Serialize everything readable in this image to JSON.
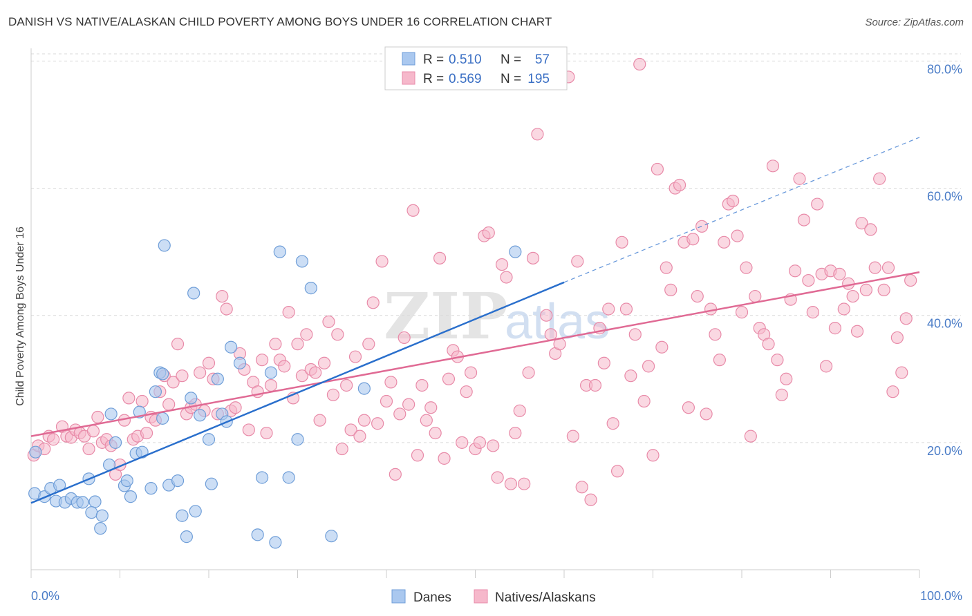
{
  "header": {
    "title": "DANISH VS NATIVE/ALASKAN CHILD POVERTY AMONG BOYS UNDER 16 CORRELATION CHART",
    "source": "Source: ZipAtlas.com"
  },
  "watermark": "ZIPatlas",
  "legend_top": [
    {
      "r_label": "R =",
      "r_value": "0.510",
      "n_label": "N =",
      "n_value": "57"
    },
    {
      "r_label": "R =",
      "r_value": "0.569",
      "n_label": "N =",
      "n_value": "195"
    }
  ],
  "legend_bottom": [
    "Danes",
    "Natives/Alaskans"
  ],
  "colors": {
    "danes_fill": "#aac8ef",
    "danes_stroke": "#6f9ed8",
    "danes_line": "#2a6fcc",
    "natives_fill": "#f6b8cb",
    "natives_stroke": "#e88aa8",
    "natives_line": "#e06a94",
    "grid": "#d9d9d9",
    "axis_text": "#4a7cc7"
  },
  "chart_data": {
    "type": "scatter",
    "xlabel": "",
    "ylabel": "Child Poverty Among Boys Under 16",
    "xlim": [
      0,
      100
    ],
    "ylim": [
      0,
      82
    ],
    "x_tick_labels": [
      "0.0%",
      "100.0%"
    ],
    "y_ticks": [
      20,
      40,
      60,
      80
    ],
    "y_tick_labels": [
      "20.0%",
      "40.0%",
      "60.0%",
      "80.0%"
    ],
    "grid": true,
    "legend_position": "top-center",
    "series": [
      {
        "name": "Danes",
        "R": 0.51,
        "N": 57,
        "trend": {
          "x0": 0,
          "y0": 10.5,
          "x1": 60,
          "y1": 45.2,
          "dashed_to_x": 100,
          "dashed_to_y": 68
        },
        "points": [
          [
            0.5,
            18.5
          ],
          [
            0.4,
            12.0
          ],
          [
            1.5,
            11.5
          ],
          [
            2.2,
            12.8
          ],
          [
            3.2,
            13.3
          ],
          [
            2.8,
            10.8
          ],
          [
            3.8,
            10.6
          ],
          [
            4.5,
            11.2
          ],
          [
            5.2,
            10.6
          ],
          [
            5.8,
            10.6
          ],
          [
            6.5,
            14.3
          ],
          [
            7.2,
            10.7
          ],
          [
            6.8,
            9.0
          ],
          [
            8.0,
            8.5
          ],
          [
            7.8,
            6.5
          ],
          [
            8.8,
            16.5
          ],
          [
            9.5,
            20.0
          ],
          [
            10.5,
            13.2
          ],
          [
            10.8,
            14.0
          ],
          [
            11.2,
            11.5
          ],
          [
            11.8,
            18.3
          ],
          [
            12.5,
            18.5
          ],
          [
            13.5,
            12.8
          ],
          [
            12.2,
            24.8
          ],
          [
            14.0,
            28.0
          ],
          [
            14.5,
            31.0
          ],
          [
            14.8,
            23.8
          ],
          [
            15.5,
            13.3
          ],
          [
            16.5,
            14.0
          ],
          [
            17.0,
            8.5
          ],
          [
            17.5,
            5.2
          ],
          [
            18.5,
            9.2
          ],
          [
            19.0,
            24.3
          ],
          [
            20.0,
            20.5
          ],
          [
            20.3,
            13.5
          ],
          [
            21.5,
            24.5
          ],
          [
            22.0,
            23.3
          ],
          [
            15.0,
            51.0
          ],
          [
            18.3,
            43.5
          ],
          [
            22.5,
            35.0
          ],
          [
            14.8,
            30.8
          ],
          [
            23.5,
            32.5
          ],
          [
            25.5,
            5.5
          ],
          [
            26.0,
            14.5
          ],
          [
            27.0,
            31.0
          ],
          [
            27.5,
            4.3
          ],
          [
            28.0,
            50.0
          ],
          [
            29.0,
            14.5
          ],
          [
            30.0,
            20.5
          ],
          [
            30.5,
            48.5
          ],
          [
            31.5,
            44.3
          ],
          [
            33.8,
            5.3
          ],
          [
            37.5,
            28.5
          ],
          [
            54.5,
            50.0
          ],
          [
            18.0,
            27.0
          ],
          [
            21.0,
            30.0
          ],
          [
            9.0,
            24.5
          ]
        ]
      },
      {
        "name": "Natives/Alaskans",
        "R": 0.569,
        "N": 195,
        "trend": {
          "x0": 0,
          "y0": 21.0,
          "x1": 100,
          "y1": 46.8
        },
        "points": [
          [
            0.3,
            18.0
          ],
          [
            0.8,
            19.5
          ],
          [
            1.5,
            19.0
          ],
          [
            2.0,
            21.0
          ],
          [
            2.5,
            20.5
          ],
          [
            3.5,
            22.5
          ],
          [
            4.0,
            21.0
          ],
          [
            4.5,
            20.8
          ],
          [
            5.0,
            22.0
          ],
          [
            5.5,
            21.5
          ],
          [
            6.0,
            21.0
          ],
          [
            6.5,
            19.0
          ],
          [
            7.0,
            21.8
          ],
          [
            7.5,
            24.0
          ],
          [
            8.0,
            20.0
          ],
          [
            8.5,
            20.5
          ],
          [
            9.0,
            19.5
          ],
          [
            9.5,
            15.0
          ],
          [
            10.0,
            16.5
          ],
          [
            10.5,
            23.5
          ],
          [
            11.0,
            27.0
          ],
          [
            11.5,
            20.5
          ],
          [
            12.0,
            21.0
          ],
          [
            12.5,
            26.5
          ],
          [
            13.0,
            21.5
          ],
          [
            13.5,
            24.0
          ],
          [
            14.0,
            23.5
          ],
          [
            14.5,
            28.0
          ],
          [
            15.0,
            30.5
          ],
          [
            15.5,
            26.0
          ],
          [
            16.0,
            29.5
          ],
          [
            16.5,
            35.5
          ],
          [
            17.0,
            30.5
          ],
          [
            17.5,
            24.5
          ],
          [
            18.0,
            25.5
          ],
          [
            18.5,
            26.0
          ],
          [
            19.0,
            31.0
          ],
          [
            19.5,
            25.0
          ],
          [
            20.0,
            32.5
          ],
          [
            20.5,
            30.0
          ],
          [
            21.0,
            24.5
          ],
          [
            21.5,
            43.0
          ],
          [
            22.0,
            41.0
          ],
          [
            22.5,
            25.0
          ],
          [
            23.0,
            25.5
          ],
          [
            23.5,
            34.0
          ],
          [
            24.0,
            31.5
          ],
          [
            24.5,
            22.0
          ],
          [
            25.0,
            29.5
          ],
          [
            25.5,
            28.0
          ],
          [
            26.0,
            33.0
          ],
          [
            26.5,
            21.5
          ],
          [
            27.0,
            29.0
          ],
          [
            27.5,
            35.5
          ],
          [
            28.0,
            33.0
          ],
          [
            28.5,
            32.0
          ],
          [
            29.0,
            40.5
          ],
          [
            29.5,
            27.0
          ],
          [
            30.0,
            35.5
          ],
          [
            30.5,
            30.5
          ],
          [
            31.0,
            37.0
          ],
          [
            31.5,
            31.5
          ],
          [
            32.0,
            31.0
          ],
          [
            32.5,
            23.5
          ],
          [
            33.0,
            32.5
          ],
          [
            33.5,
            39.0
          ],
          [
            34.0,
            27.5
          ],
          [
            34.5,
            37.0
          ],
          [
            35.0,
            19.0
          ],
          [
            35.5,
            29.0
          ],
          [
            36.0,
            22.0
          ],
          [
            36.5,
            33.5
          ],
          [
            37.0,
            21.0
          ],
          [
            37.5,
            23.5
          ],
          [
            38.0,
            35.5
          ],
          [
            38.5,
            42.0
          ],
          [
            39.0,
            23.0
          ],
          [
            39.5,
            48.5
          ],
          [
            40.0,
            26.5
          ],
          [
            40.5,
            29.5
          ],
          [
            41.0,
            15.0
          ],
          [
            41.5,
            24.5
          ],
          [
            42.0,
            36.5
          ],
          [
            42.5,
            26.0
          ],
          [
            43.0,
            56.5
          ],
          [
            43.5,
            18.0
          ],
          [
            44.0,
            29.0
          ],
          [
            44.5,
            23.5
          ],
          [
            45.0,
            25.5
          ],
          [
            45.5,
            21.5
          ],
          [
            46.0,
            49.0
          ],
          [
            46.5,
            17.5
          ],
          [
            47.0,
            30.0
          ],
          [
            47.5,
            34.5
          ],
          [
            48.0,
            33.5
          ],
          [
            48.5,
            20.0
          ],
          [
            49.0,
            28.0
          ],
          [
            49.5,
            31.0
          ],
          [
            50.0,
            19.0
          ],
          [
            50.5,
            20.0
          ],
          [
            51.0,
            52.5
          ],
          [
            51.5,
            53.0
          ],
          [
            52.0,
            19.5
          ],
          [
            52.5,
            14.5
          ],
          [
            53.0,
            48.0
          ],
          [
            53.5,
            46.0
          ],
          [
            54.0,
            13.5
          ],
          [
            54.5,
            21.5
          ],
          [
            55.0,
            25.0
          ],
          [
            55.5,
            13.5
          ],
          [
            56.0,
            31.0
          ],
          [
            56.5,
            49.0
          ],
          [
            57.0,
            68.5
          ],
          [
            58.0,
            40.0
          ],
          [
            58.5,
            37.0
          ],
          [
            59.0,
            34.0
          ],
          [
            59.5,
            35.5
          ],
          [
            60.5,
            77.5
          ],
          [
            61.0,
            21.0
          ],
          [
            61.5,
            48.5
          ],
          [
            62.0,
            13.0
          ],
          [
            62.5,
            29.0
          ],
          [
            63.0,
            11.0
          ],
          [
            63.5,
            29.0
          ],
          [
            64.0,
            38.0
          ],
          [
            64.5,
            32.5
          ],
          [
            65.0,
            41.0
          ],
          [
            65.5,
            23.0
          ],
          [
            66.0,
            15.5
          ],
          [
            66.5,
            51.5
          ],
          [
            67.0,
            41.0
          ],
          [
            67.5,
            30.5
          ],
          [
            68.0,
            37.0
          ],
          [
            68.5,
            79.5
          ],
          [
            69.0,
            26.5
          ],
          [
            69.5,
            32.0
          ],
          [
            70.0,
            18.0
          ],
          [
            70.5,
            63.0
          ],
          [
            71.0,
            35.0
          ],
          [
            71.5,
            47.5
          ],
          [
            72.0,
            44.0
          ],
          [
            72.5,
            60.0
          ],
          [
            73.0,
            60.5
          ],
          [
            73.5,
            51.5
          ],
          [
            74.0,
            25.5
          ],
          [
            74.5,
            52.0
          ],
          [
            75.0,
            43.0
          ],
          [
            75.5,
            54.0
          ],
          [
            76.0,
            24.5
          ],
          [
            76.5,
            41.0
          ],
          [
            77.0,
            37.0
          ],
          [
            77.5,
            33.0
          ],
          [
            78.0,
            51.5
          ],
          [
            78.5,
            57.5
          ],
          [
            79.0,
            58.0
          ],
          [
            79.5,
            52.5
          ],
          [
            80.0,
            40.5
          ],
          [
            80.5,
            47.5
          ],
          [
            81.0,
            21.0
          ],
          [
            81.5,
            43.0
          ],
          [
            82.0,
            38.0
          ],
          [
            82.5,
            37.0
          ],
          [
            83.0,
            35.5
          ],
          [
            83.5,
            63.5
          ],
          [
            84.0,
            33.0
          ],
          [
            84.5,
            27.5
          ],
          [
            85.0,
            30.0
          ],
          [
            85.5,
            42.5
          ],
          [
            86.0,
            47.0
          ],
          [
            86.5,
            61.5
          ],
          [
            87.0,
            55.0
          ],
          [
            87.5,
            45.5
          ],
          [
            88.0,
            40.5
          ],
          [
            88.5,
            57.5
          ],
          [
            89.0,
            46.5
          ],
          [
            89.5,
            32.0
          ],
          [
            90.0,
            47.0
          ],
          [
            90.5,
            38.0
          ],
          [
            91.0,
            46.5
          ],
          [
            91.5,
            41.0
          ],
          [
            92.0,
            45.0
          ],
          [
            92.5,
            43.0
          ],
          [
            93.0,
            37.5
          ],
          [
            93.5,
            54.5
          ],
          [
            94.0,
            44.0
          ],
          [
            94.5,
            53.5
          ],
          [
            95.0,
            47.5
          ],
          [
            95.5,
            61.5
          ],
          [
            96.0,
            44.0
          ],
          [
            96.5,
            47.5
          ],
          [
            97.0,
            28.0
          ],
          [
            97.5,
            36.5
          ],
          [
            98.0,
            31.0
          ],
          [
            98.5,
            39.5
          ],
          [
            99.0,
            45.5
          ]
        ]
      }
    ]
  }
}
